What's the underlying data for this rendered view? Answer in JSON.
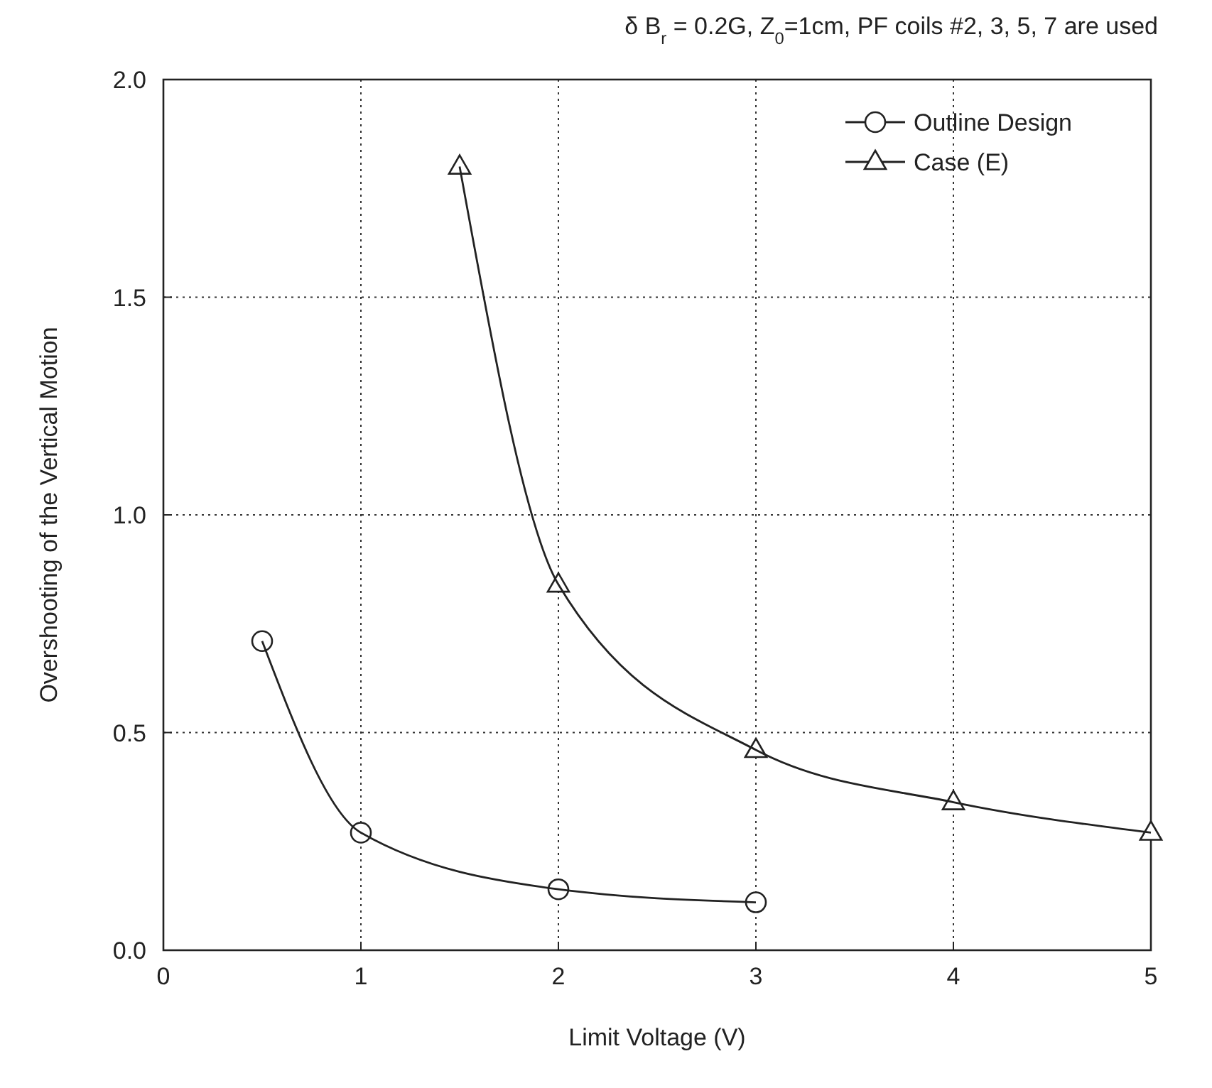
{
  "chart_data": {
    "type": "line",
    "title": "δ B$_{r}$ = 0.2G, Z$_{0}$=1cm, PF coils #2, 3, 5, 7 are used",
    "xlabel": "Limit Voltage  (V)",
    "ylabel": "Overshooting of the Vertical Motion",
    "series": [
      {
        "name": "Outline Design",
        "color": "#222222",
        "marker": "circle",
        "x": [
          0.5,
          1,
          2,
          3
        ],
        "values": [
          0.71,
          0.27,
          0.14,
          0.11
        ]
      },
      {
        "name": "Case (E)",
        "color": "#222222",
        "marker": "triangle",
        "x": [
          1.5,
          2,
          3,
          4,
          5
        ],
        "values": [
          1.8,
          0.84,
          0.46,
          0.34,
          0.27
        ]
      }
    ],
    "xlim": [
      0,
      5
    ],
    "ylim": [
      0,
      2
    ],
    "xticks": [
      0,
      1,
      2,
      3,
      4,
      5
    ],
    "yticks": [
      {
        "value": 0,
        "label": "0.0"
      },
      {
        "value": 0.5,
        "label": "0.5"
      },
      {
        "value": 1,
        "label": "1.0"
      },
      {
        "value": 1.5,
        "label": "1.5"
      },
      {
        "value": 2,
        "label": "2.0"
      }
    ],
    "grid": true,
    "legend": "top right",
    "line_style": "solid"
  }
}
